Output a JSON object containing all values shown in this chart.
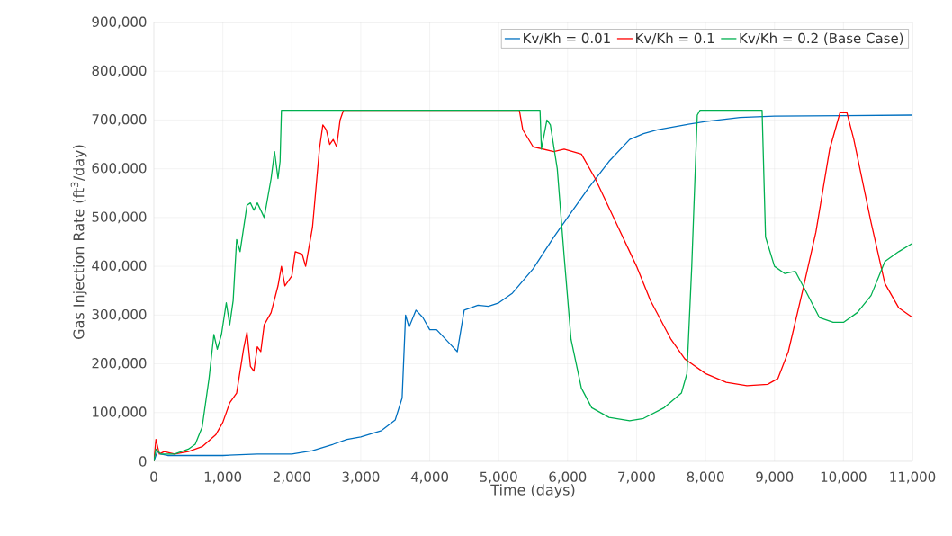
{
  "chart_data": {
    "type": "line",
    "xlabel": "Time (days)",
    "ylabel": "Gas Injection Rate (ft$^{3}$/day)",
    "xlim": [
      0,
      11000
    ],
    "ylim": [
      0,
      900000
    ],
    "xticks": [
      0,
      {
        "value": 1000,
        "label": "1,000"
      },
      {
        "value": 2000,
        "label": "2,000"
      },
      {
        "value": 3000,
        "label": "3,000"
      },
      {
        "value": 4000,
        "label": "4,000"
      },
      {
        "value": 5000,
        "label": "5,000"
      },
      {
        "value": 6000,
        "label": "6,000"
      },
      {
        "value": 7000,
        "label": "7,000"
      },
      {
        "value": 8000,
        "label": "8,000"
      },
      {
        "value": 9000,
        "label": "9,000"
      },
      {
        "value": 10000,
        "label": "10,000"
      },
      {
        "value": 11000,
        "label": "11,000"
      }
    ],
    "yticks": [
      0,
      {
        "value": 100000,
        "label": "100,000"
      },
      {
        "value": 200000,
        "label": "200,000"
      },
      {
        "value": 300000,
        "label": "300,000"
      },
      {
        "value": 400000,
        "label": "400,000"
      },
      {
        "value": 500000,
        "label": "500,000"
      },
      {
        "value": 600000,
        "label": "600,000"
      },
      {
        "value": 700000,
        "label": "700,000"
      },
      {
        "value": 800000,
        "label": "800,000"
      },
      {
        "value": 900000,
        "label": "900,000"
      }
    ],
    "grid": true,
    "legend": "top right",
    "marker": "none",
    "line_style": "solid",
    "series": [
      {
        "name": "Kv/Kh = 0.01",
        "color": "#0070c0",
        "x": [
          0,
          50,
          100,
          200,
          500,
          1000,
          1500,
          2000,
          2300,
          2600,
          2800,
          3000,
          3300,
          3500,
          3600,
          3650,
          3700,
          3800,
          3900,
          4000,
          4100,
          4300,
          4400,
          4500,
          4700,
          4850,
          5000,
          5200,
          5500,
          5800,
          6000,
          6300,
          6600,
          6900,
          7100,
          7300,
          7700,
          8000,
          8500,
          9000,
          10000,
          11000
        ],
        "values": [
          0,
          20000,
          15000,
          12000,
          12000,
          12000,
          15000,
          15000,
          22000,
          35000,
          45000,
          50000,
          63000,
          85000,
          130000,
          300000,
          275000,
          310000,
          295000,
          270000,
          270000,
          240000,
          225000,
          310000,
          320000,
          318000,
          325000,
          345000,
          395000,
          460000,
          500000,
          560000,
          615000,
          660000,
          672000,
          680000,
          690000,
          697000,
          705000,
          708000,
          709000,
          710000
        ]
      },
      {
        "name": "Kv/Kh = 0.1",
        "color": "#ff0000",
        "x": [
          0,
          30,
          80,
          150,
          300,
          500,
          700,
          900,
          1000,
          1100,
          1200,
          1300,
          1350,
          1400,
          1450,
          1500,
          1550,
          1600,
          1700,
          1800,
          1850,
          1900,
          2000,
          2050,
          2150,
          2200,
          2300,
          2400,
          2450,
          2500,
          2550,
          2600,
          2650,
          2700,
          2750,
          5300,
          5350,
          5500,
          5800,
          5950,
          6200,
          6400,
          6700,
          7000,
          7200,
          7500,
          7700,
          8000,
          8300,
          8600,
          8900,
          9050,
          9200,
          9400,
          9600,
          9800,
          9950,
          10050,
          10150,
          10400,
          10600,
          10800,
          11000
        ],
        "values": [
          0,
          45000,
          15000,
          20000,
          15000,
          20000,
          30000,
          55000,
          80000,
          120000,
          140000,
          230000,
          265000,
          195000,
          185000,
          235000,
          225000,
          280000,
          305000,
          360000,
          400000,
          360000,
          380000,
          430000,
          425000,
          400000,
          480000,
          640000,
          690000,
          680000,
          650000,
          660000,
          645000,
          700000,
          720000,
          720000,
          680000,
          645000,
          635000,
          640000,
          630000,
          580000,
          490000,
          400000,
          330000,
          250000,
          210000,
          180000,
          162000,
          155000,
          158000,
          170000,
          225000,
          345000,
          470000,
          640000,
          715000,
          715000,
          660000,
          490000,
          365000,
          315000,
          295000
        ]
      },
      {
        "name": "Kv/Kh = 0.2 (Base Case)",
        "color": "#00b050",
        "x": [
          0,
          30,
          100,
          300,
          500,
          600,
          700,
          800,
          870,
          920,
          980,
          1050,
          1100,
          1150,
          1200,
          1250,
          1350,
          1400,
          1450,
          1500,
          1600,
          1700,
          1750,
          1800,
          1830,
          1850,
          5600,
          5620,
          5700,
          5750,
          5850,
          5950,
          6050,
          6200,
          6350,
          6600,
          6900,
          7100,
          7400,
          7650,
          7730,
          7800,
          7880,
          7920,
          8820,
          8870,
          9000,
          9150,
          9300,
          9450,
          9650,
          9850,
          10000,
          10200,
          10400,
          10600,
          10800,
          11000
        ],
        "values": [
          0,
          25000,
          15000,
          15000,
          25000,
          35000,
          70000,
          170000,
          260000,
          230000,
          260000,
          325000,
          280000,
          330000,
          455000,
          430000,
          525000,
          530000,
          515000,
          530000,
          500000,
          580000,
          635000,
          580000,
          615000,
          720000,
          720000,
          640000,
          700000,
          690000,
          600000,
          420000,
          250000,
          150000,
          110000,
          90000,
          83000,
          88000,
          110000,
          140000,
          180000,
          400000,
          710000,
          720000,
          720000,
          460000,
          400000,
          385000,
          390000,
          350000,
          295000,
          285000,
          285000,
          305000,
          340000,
          410000,
          430000,
          447000
        ]
      }
    ]
  }
}
